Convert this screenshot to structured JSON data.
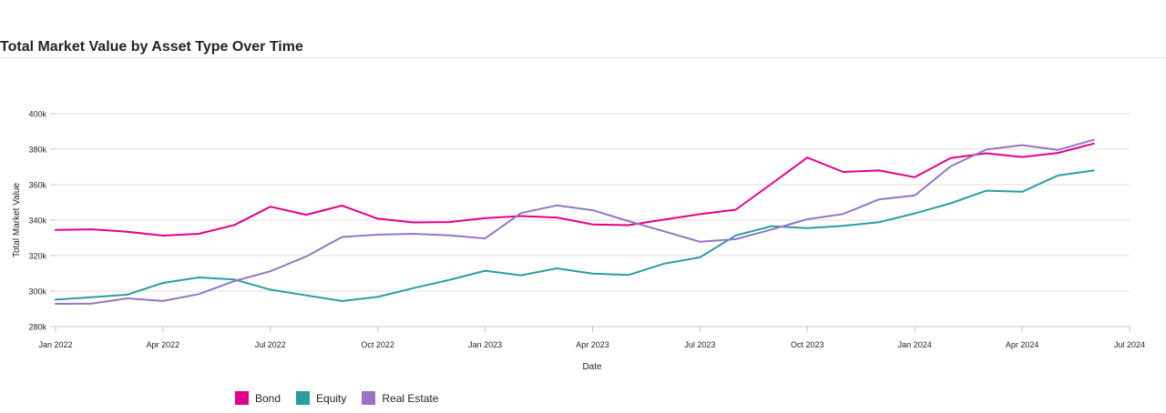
{
  "chart_data": {
    "type": "line",
    "title": "Total Market Value by Asset Type Over Time",
    "xlabel": "Date",
    "ylabel": "Total Market Value",
    "ylim": [
      280000,
      400000
    ],
    "yticks": [
      280000,
      300000,
      320000,
      340000,
      360000,
      380000,
      400000
    ],
    "ytick_labels": [
      "280k",
      "300k",
      "320k",
      "340k",
      "360k",
      "380k",
      "400k"
    ],
    "xlim": [
      "2022-01",
      "2024-07"
    ],
    "xticks": [
      "2022-01",
      "2022-04",
      "2022-07",
      "2022-10",
      "2023-01",
      "2023-04",
      "2023-07",
      "2023-10",
      "2024-01",
      "2024-04",
      "2024-07"
    ],
    "xtick_labels": [
      "Jan 2022",
      "Apr 2022",
      "Jul 2022",
      "Oct 2022",
      "Jan 2023",
      "Apr 2023",
      "Jul 2023",
      "Oct 2023",
      "Jan 2024",
      "Apr 2024",
      "Jul 2024"
    ],
    "grid": true,
    "legend_position": "bottom-left",
    "x": [
      "2022-01",
      "2022-02",
      "2022-03",
      "2022-04",
      "2022-05",
      "2022-06",
      "2022-07",
      "2022-08",
      "2022-09",
      "2022-10",
      "2022-11",
      "2022-12",
      "2023-01",
      "2023-02",
      "2023-03",
      "2023-04",
      "2023-05",
      "2023-06",
      "2023-07",
      "2023-08",
      "2023-09",
      "2023-10",
      "2023-11",
      "2023-12",
      "2024-01",
      "2024-02",
      "2024-03",
      "2024-04",
      "2024-05",
      "2024-06"
    ],
    "series": [
      {
        "name": "Bond",
        "color": "#e3008c",
        "values": [
          334500,
          334800,
          333500,
          331300,
          332300,
          337300,
          347600,
          343000,
          348200,
          340800,
          338700,
          338900,
          341200,
          342300,
          341500,
          337600,
          337200,
          340300,
          343400,
          345900,
          360500,
          375300,
          367200,
          368000,
          364200,
          375000,
          377700,
          375600,
          377900,
          383200
        ]
      },
      {
        "name": "Equity",
        "color": "#2a9e9e",
        "values": [
          295200,
          296500,
          298000,
          304600,
          307700,
          306500,
          300800,
          297600,
          294400,
          296700,
          301700,
          306300,
          311500,
          308900,
          312800,
          309900,
          309100,
          315500,
          319000,
          331400,
          336600,
          335500,
          336800,
          338800,
          343800,
          349500,
          356600,
          356000,
          365200,
          368000
        ]
      },
      {
        "name": "Real Estate",
        "color": "#9575c4",
        "values": [
          292800,
          292900,
          295900,
          294400,
          298300,
          305700,
          311200,
          319500,
          330500,
          331800,
          332300,
          331400,
          329700,
          344000,
          348300,
          345600,
          339500,
          333700,
          327800,
          329300,
          334700,
          340500,
          343500,
          351700,
          353900,
          370300,
          379800,
          382300,
          379600,
          385300
        ]
      }
    ]
  }
}
